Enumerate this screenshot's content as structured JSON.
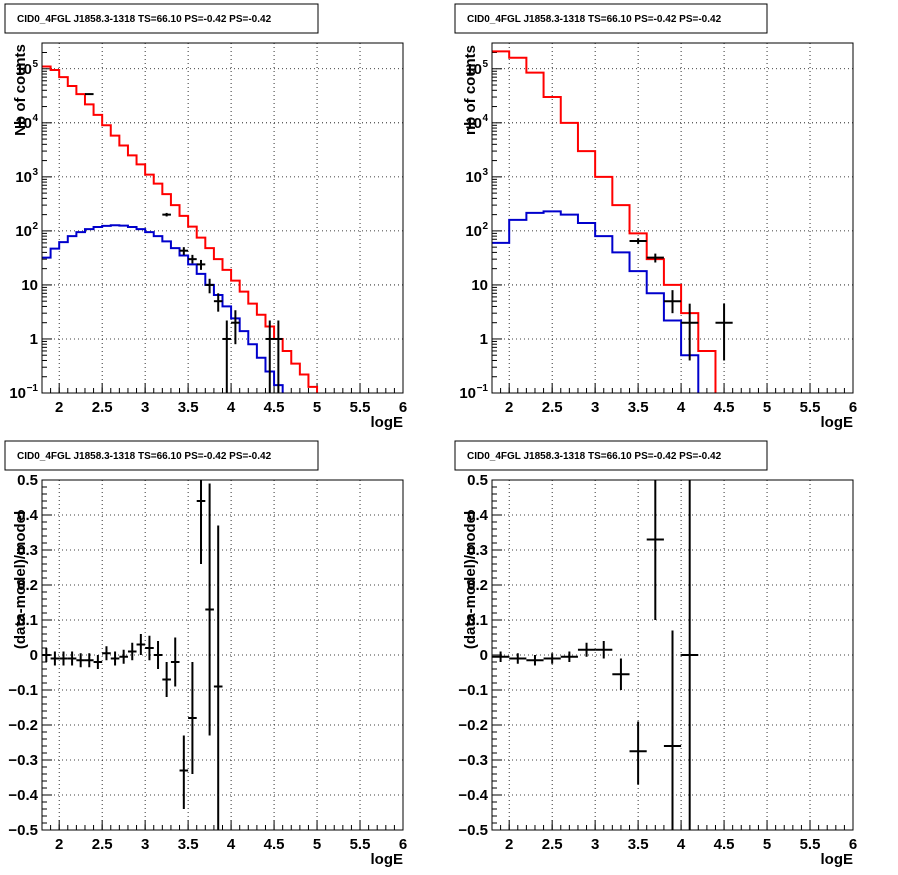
{
  "chart_data": [
    {
      "type": "line",
      "title": "CID0_4FGL J1858.3-1318 TS=66.10 PS=-0.42 PS=-0.42",
      "xlabel": "logE",
      "ylabel": "Nb of counts",
      "xlim": [
        1.8,
        6
      ],
      "ylim": [
        0.1,
        300000
      ],
      "log_y": true,
      "grid": true,
      "x_ticks": [
        "2",
        "2.5",
        "3",
        "3.5",
        "4",
        "4.5",
        "5",
        "5.5",
        "6"
      ],
      "y_ticks": [
        {
          "v": 0.1,
          "m": "10",
          "e": "−1"
        },
        {
          "v": 1,
          "m": "1",
          "e": ""
        },
        {
          "v": 10,
          "m": "10",
          "e": ""
        },
        {
          "v": 100,
          "m": "10",
          "e": "2"
        },
        {
          "v": 1000,
          "m": "10",
          "e": "3"
        },
        {
          "v": 10000,
          "m": "10",
          "e": "4"
        },
        {
          "v": 100000,
          "m": "10",
          "e": "5"
        }
      ],
      "bin_width": 0.1,
      "series": [
        {
          "color": "#ff0000",
          "style": "step",
          "x_start": 1.8,
          "values": [
            110000,
            95000,
            70000,
            48000,
            34000,
            22000,
            14000,
            9000,
            5800,
            3800,
            2500,
            1700,
            1100,
            750,
            480,
            300,
            190,
            120,
            75,
            48,
            30,
            19,
            12,
            7.5,
            4.5,
            2.8,
            1.7,
            1.0,
            0.6,
            0.35,
            0.22,
            0.13,
            0.08
          ]
        },
        {
          "color": "#0000cc",
          "style": "step",
          "x_start": 1.8,
          "values": [
            32,
            47,
            62,
            80,
            95,
            108,
            118,
            124,
            127,
            125,
            118,
            108,
            95,
            80,
            64,
            48,
            35,
            24,
            16,
            10,
            6.5,
            4,
            2.4,
            1.4,
            0.8,
            0.45,
            0.25,
            0.14,
            0.08,
            0.05,
            0.05,
            0.05,
            0.05,
            0.05,
            0.05,
            0.05,
            0.05,
            0.05,
            0.05,
            0.05,
            0.05,
            0.05
          ]
        },
        {
          "color": "#000000",
          "style": "errorbars",
          "xerr": 0.05,
          "points": [
            {
              "x": 2.35,
              "y": 34000,
              "lo": 33000,
              "hi": 35000
            },
            {
              "x": 3.25,
              "y": 200,
              "lo": 185,
              "hi": 215
            },
            {
              "x": 3.45,
              "y": 43,
              "lo": 36,
              "hi": 50
            },
            {
              "x": 3.55,
              "y": 30,
              "lo": 25,
              "hi": 36
            },
            {
              "x": 3.65,
              "y": 24,
              "lo": 19,
              "hi": 29
            },
            {
              "x": 3.75,
              "y": 10,
              "lo": 7,
              "hi": 13
            },
            {
              "x": 3.85,
              "y": 5,
              "lo": 3.2,
              "hi": 7
            },
            {
              "x": 3.95,
              "y": 1,
              "lo": 0.05,
              "hi": 2.2
            },
            {
              "x": 4.05,
              "y": 2,
              "lo": 0.8,
              "hi": 3.4
            },
            {
              "x": 4.45,
              "y": 1,
              "lo": 0.05,
              "hi": 2.2
            },
            {
              "x": 4.55,
              "y": 1,
              "lo": 0.05,
              "hi": 2.2
            }
          ]
        }
      ]
    },
    {
      "type": "line",
      "title": "CID0_4FGL J1858.3-1318 TS=66.10 PS=-0.42 PS=-0.42",
      "xlabel": "logE",
      "ylabel": "nb of counts",
      "xlim": [
        1.8,
        6
      ],
      "ylim": [
        0.1,
        300000
      ],
      "log_y": true,
      "grid": true,
      "x_ticks": [
        "2",
        "2.5",
        "3",
        "3.5",
        "4",
        "4.5",
        "5",
        "5.5",
        "6"
      ],
      "y_ticks": [
        {
          "v": 0.1,
          "m": "10",
          "e": "−1"
        },
        {
          "v": 1,
          "m": "1",
          "e": ""
        },
        {
          "v": 10,
          "m": "10",
          "e": ""
        },
        {
          "v": 100,
          "m": "10",
          "e": "2"
        },
        {
          "v": 1000,
          "m": "10",
          "e": "3"
        },
        {
          "v": 10000,
          "m": "10",
          "e": "4"
        },
        {
          "v": 100000,
          "m": "10",
          "e": "5"
        }
      ],
      "bin_width": 0.2,
      "series": [
        {
          "color": "#ff0000",
          "style": "step",
          "x_start": 1.8,
          "values": [
            210000,
            160000,
            85000,
            30000,
            10000,
            3000,
            1000,
            300,
            90,
            30,
            10,
            3,
            0.6,
            0.09
          ]
        },
        {
          "color": "#0000cc",
          "style": "step",
          "x_start": 1.8,
          "values": [
            60,
            160,
            215,
            230,
            200,
            140,
            80,
            40,
            18,
            7,
            2.2,
            0.5,
            0.07,
            0.05,
            0.05,
            0.05,
            0.05,
            0.05,
            0.05,
            0.05,
            0.05
          ]
        },
        {
          "color": "#000000",
          "style": "errorbars",
          "xerr": 0.1,
          "points": [
            {
              "x": 3.5,
              "y": 65,
              "lo": 57,
              "hi": 73
            },
            {
              "x": 3.7,
              "y": 32,
              "lo": 26,
              "hi": 38
            },
            {
              "x": 3.9,
              "y": 5,
              "lo": 3,
              "hi": 8
            },
            {
              "x": 4.1,
              "y": 2,
              "lo": 0.4,
              "hi": 4.5
            },
            {
              "x": 4.5,
              "y": 2,
              "lo": 0.4,
              "hi": 4.5
            }
          ]
        }
      ]
    },
    {
      "type": "scatter",
      "title": "CID0_4FGL J1858.3-1318 TS=66.10 PS=-0.42 PS=-0.42",
      "xlabel": "logE",
      "ylabel": "(data-model)/model",
      "xlim": [
        1.8,
        6
      ],
      "ylim": [
        -0.5,
        0.5
      ],
      "log_y": false,
      "grid": true,
      "x_ticks": [
        "2",
        "2.5",
        "3",
        "3.5",
        "4",
        "4.5",
        "5",
        "5.5",
        "6"
      ],
      "y_ticks": [
        {
          "v": -0.5,
          "m": "−0.5",
          "e": ""
        },
        {
          "v": -0.4,
          "m": "−0.4",
          "e": ""
        },
        {
          "v": -0.3,
          "m": "−0.3",
          "e": ""
        },
        {
          "v": -0.2,
          "m": "−0.2",
          "e": ""
        },
        {
          "v": -0.1,
          "m": "−0.1",
          "e": ""
        },
        {
          "v": 0,
          "m": "0",
          "e": ""
        },
        {
          "v": 0.1,
          "m": "0.1",
          "e": ""
        },
        {
          "v": 0.2,
          "m": "0.2",
          "e": ""
        },
        {
          "v": 0.3,
          "m": "0.3",
          "e": ""
        },
        {
          "v": 0.4,
          "m": "0.4",
          "e": ""
        },
        {
          "v": 0.5,
          "m": "0.5",
          "e": ""
        }
      ],
      "series": [
        {
          "color": "#000000",
          "style": "errorbars",
          "xerr": 0.05,
          "points": [
            {
              "x": 1.85,
              "y": 0.0,
              "lo": -0.02,
              "hi": 0.02
            },
            {
              "x": 1.95,
              "y": -0.01,
              "lo": -0.03,
              "hi": 0.01
            },
            {
              "x": 2.05,
              "y": -0.01,
              "lo": -0.03,
              "hi": 0.01
            },
            {
              "x": 2.15,
              "y": -0.01,
              "lo": -0.03,
              "hi": 0.01
            },
            {
              "x": 2.25,
              "y": -0.015,
              "lo": -0.035,
              "hi": 0.005
            },
            {
              "x": 2.35,
              "y": -0.015,
              "lo": -0.035,
              "hi": 0.005
            },
            {
              "x": 2.45,
              "y": -0.02,
              "lo": -0.04,
              "hi": 0.0
            },
            {
              "x": 2.55,
              "y": 0.005,
              "lo": -0.015,
              "hi": 0.025
            },
            {
              "x": 2.65,
              "y": -0.01,
              "lo": -0.03,
              "hi": 0.01
            },
            {
              "x": 2.75,
              "y": -0.005,
              "lo": -0.025,
              "hi": 0.015
            },
            {
              "x": 2.85,
              "y": 0.01,
              "lo": -0.015,
              "hi": 0.035
            },
            {
              "x": 2.95,
              "y": 0.03,
              "lo": 0.0,
              "hi": 0.06
            },
            {
              "x": 3.05,
              "y": 0.02,
              "lo": -0.015,
              "hi": 0.055
            },
            {
              "x": 3.15,
              "y": 0.0,
              "lo": -0.04,
              "hi": 0.04
            },
            {
              "x": 3.25,
              "y": -0.07,
              "lo": -0.12,
              "hi": -0.02
            },
            {
              "x": 3.35,
              "y": -0.02,
              "lo": -0.09,
              "hi": 0.05
            },
            {
              "x": 3.45,
              "y": -0.33,
              "lo": -0.44,
              "hi": -0.23
            },
            {
              "x": 3.55,
              "y": -0.18,
              "lo": -0.34,
              "hi": -0.02
            },
            {
              "x": 3.65,
              "y": 0.44,
              "lo": 0.26,
              "hi": 0.53
            },
            {
              "x": 3.75,
              "y": 0.13,
              "lo": -0.23,
              "hi": 0.49
            },
            {
              "x": 3.85,
              "y": -0.09,
              "lo": -0.55,
              "hi": 0.37
            }
          ]
        }
      ]
    },
    {
      "type": "scatter",
      "title": "CID0_4FGL J1858.3-1318 TS=66.10 PS=-0.42 PS=-0.42",
      "xlabel": "logE",
      "ylabel": "(data-model)/model",
      "xlim": [
        1.8,
        6
      ],
      "ylim": [
        -0.5,
        0.5
      ],
      "log_y": false,
      "grid": true,
      "x_ticks": [
        "2",
        "2.5",
        "3",
        "3.5",
        "4",
        "4.5",
        "5",
        "5.5",
        "6"
      ],
      "y_ticks": [
        {
          "v": -0.5,
          "m": "−0.5",
          "e": ""
        },
        {
          "v": -0.4,
          "m": "−0.4",
          "e": ""
        },
        {
          "v": -0.3,
          "m": "−0.3",
          "e": ""
        },
        {
          "v": -0.2,
          "m": "−0.2",
          "e": ""
        },
        {
          "v": -0.1,
          "m": "−0.1",
          "e": ""
        },
        {
          "v": 0,
          "m": "0",
          "e": ""
        },
        {
          "v": 0.1,
          "m": "0.1",
          "e": ""
        },
        {
          "v": 0.2,
          "m": "0.2",
          "e": ""
        },
        {
          "v": 0.3,
          "m": "0.3",
          "e": ""
        },
        {
          "v": 0.4,
          "m": "0.4",
          "e": ""
        },
        {
          "v": 0.5,
          "m": "0.5",
          "e": ""
        }
      ],
      "series": [
        {
          "color": "#000000",
          "style": "errorbars",
          "xerr": 0.1,
          "points": [
            {
              "x": 1.9,
              "y": -0.005,
              "lo": -0.02,
              "hi": 0.01
            },
            {
              "x": 2.1,
              "y": -0.01,
              "lo": -0.025,
              "hi": 0.005
            },
            {
              "x": 2.3,
              "y": -0.015,
              "lo": -0.03,
              "hi": 0.0
            },
            {
              "x": 2.5,
              "y": -0.01,
              "lo": -0.025,
              "hi": 0.005
            },
            {
              "x": 2.7,
              "y": -0.005,
              "lo": -0.02,
              "hi": 0.01
            },
            {
              "x": 2.9,
              "y": 0.015,
              "lo": -0.005,
              "hi": 0.035
            },
            {
              "x": 3.1,
              "y": 0.015,
              "lo": -0.01,
              "hi": 0.04
            },
            {
              "x": 3.3,
              "y": -0.055,
              "lo": -0.1,
              "hi": -0.01
            },
            {
              "x": 3.5,
              "y": -0.275,
              "lo": -0.37,
              "hi": -0.19
            },
            {
              "x": 3.7,
              "y": 0.33,
              "lo": 0.1,
              "hi": 0.5
            },
            {
              "x": 3.9,
              "y": -0.26,
              "lo": -0.5,
              "hi": 0.07
            },
            {
              "x": 4.1,
              "y": 0.0,
              "lo": -0.5,
              "hi": 0.5
            }
          ]
        }
      ]
    }
  ]
}
